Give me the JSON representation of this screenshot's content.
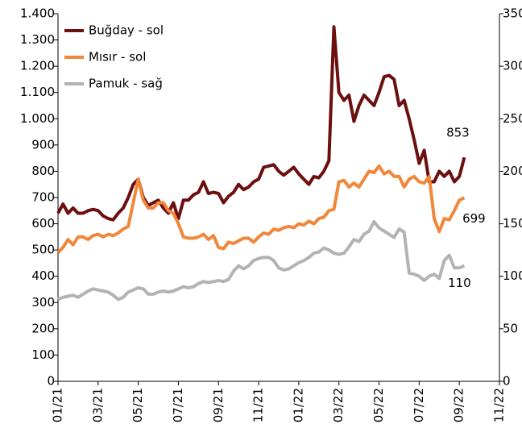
{
  "chart_data": {
    "type": "line",
    "categories": [
      "01/21",
      null,
      null,
      null,
      null,
      null,
      null,
      null,
      "03/21",
      null,
      null,
      null,
      null,
      null,
      null,
      null,
      "05/21",
      null,
      null,
      null,
      null,
      null,
      null,
      null,
      "07/21",
      null,
      null,
      null,
      null,
      null,
      null,
      null,
      "09/21",
      null,
      null,
      null,
      null,
      null,
      null,
      null,
      "11/21",
      null,
      null,
      null,
      null,
      null,
      null,
      null,
      "01/22",
      null,
      null,
      null,
      null,
      null,
      null,
      null,
      "03/22",
      null,
      null,
      null,
      null,
      null,
      null,
      null,
      "05/22",
      null,
      null,
      null,
      null,
      null,
      null,
      null,
      "07/22",
      null,
      null,
      null,
      null,
      null,
      null,
      null,
      "09/22",
      null,
      null,
      null,
      null,
      null,
      null,
      null,
      "11/22"
    ],
    "series": [
      {
        "name": "Buğday - sol",
        "color": "#6b0f0f",
        "axis": "y",
        "values": [
          640,
          675,
          640,
          660,
          640,
          640,
          650,
          655,
          650,
          630,
          620,
          615,
          640,
          660,
          700,
          750,
          770,
          700,
          670,
          680,
          690,
          660,
          640,
          680,
          620,
          690,
          690,
          710,
          720,
          760,
          715,
          720,
          715,
          680,
          705,
          720,
          750,
          730,
          740,
          760,
          770,
          815,
          820,
          825,
          800,
          785,
          800,
          815,
          790,
          770,
          750,
          780,
          775,
          800,
          840,
          1350,
          1100,
          1070,
          1090,
          990,
          1050,
          1090,
          1070,
          1050,
          1100,
          1160,
          1165,
          1150,
          1050,
          1070,
          1000,
          920,
          830,
          880,
          760,
          760,
          800,
          780,
          800,
          760,
          780,
          853,
          null,
          null,
          null,
          null,
          null,
          null,
          null
        ]
      },
      {
        "name": "Mısır - sol",
        "color": "#f0873a",
        "axis": "y",
        "values": [
          490,
          510,
          540,
          520,
          550,
          550,
          540,
          555,
          560,
          550,
          560,
          555,
          565,
          580,
          590,
          680,
          770,
          690,
          660,
          660,
          680,
          680,
          650,
          640,
          600,
          550,
          545,
          545,
          550,
          560,
          540,
          555,
          510,
          505,
          530,
          525,
          535,
          545,
          545,
          530,
          550,
          565,
          560,
          580,
          575,
          585,
          590,
          585,
          600,
          595,
          610,
          600,
          620,
          625,
          650,
          655,
          760,
          765,
          740,
          755,
          740,
          770,
          800,
          795,
          820,
          790,
          800,
          780,
          780,
          740,
          770,
          780,
          760,
          755,
          780,
          620,
          570,
          620,
          615,
          650,
          690,
          699,
          null,
          null,
          null,
          null,
          null,
          null,
          null
        ]
      },
      {
        "name": "Pamuk - sağ",
        "color": "#b3b3b3",
        "axis": "y2",
        "values": [
          78,
          80,
          81,
          82,
          80,
          83,
          86,
          88,
          87,
          86,
          85,
          82,
          78,
          80,
          85,
          87,
          89,
          88,
          83,
          83,
          85,
          86,
          85,
          86,
          88,
          90,
          89,
          90,
          93,
          95,
          94,
          95,
          96,
          95,
          97,
          105,
          110,
          107,
          110,
          115,
          117,
          118,
          118,
          115,
          108,
          106,
          107,
          110,
          113,
          115,
          118,
          122,
          123,
          127,
          125,
          122,
          121,
          122,
          128,
          135,
          133,
          140,
          143,
          152,
          146,
          143,
          140,
          137,
          145,
          142,
          103,
          102,
          100,
          96,
          100,
          102,
          98,
          115,
          120,
          108,
          108,
          110,
          null,
          null,
          null,
          null,
          null,
          null,
          null
        ]
      }
    ],
    "ylim": [
      0,
      1400
    ],
    "yticks": [
      0,
      100,
      200,
      300,
      400,
      500,
      600,
      700,
      800,
      900,
      {
        "value": 1000,
        "label": "1.000"
      },
      {
        "value": 1100,
        "label": "1.100"
      },
      {
        "value": 1200,
        "label": "1.200"
      },
      {
        "value": 1300,
        "label": "1.300"
      },
      {
        "value": 1400,
        "label": "1.400"
      }
    ],
    "y2lim": [
      0,
      350
    ],
    "y2ticks": [
      0,
      50,
      100,
      150,
      200,
      250,
      300,
      350
    ],
    "grid": false,
    "legend": "top-left"
  }
}
